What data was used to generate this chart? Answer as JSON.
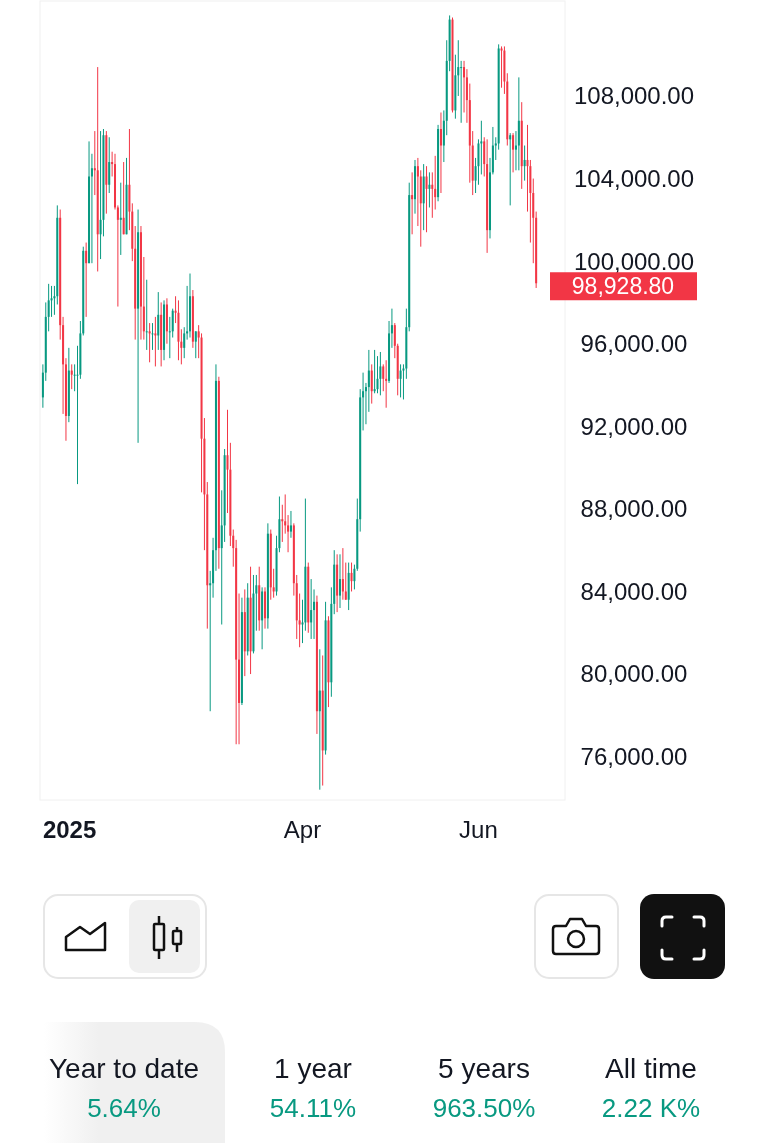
{
  "chart_data": {
    "type": "candlestick",
    "colors": [
      "#089981",
      "#089981",
      "#089981",
      "#089981",
      "#089981",
      "#089981",
      "#f23645",
      "#f23645",
      "#f23645",
      "#089981",
      "#f23645",
      "#089981",
      "#089981",
      "#089981",
      "#089981",
      "#f23645",
      "#089981",
      "#089981",
      "#f23645",
      "#f23645",
      "#089981",
      "#089981",
      "#f23645",
      "#089981",
      "#f23645",
      "#f23645",
      "#f23645",
      "#089981",
      "#f23645",
      "#089981",
      "#f23645",
      "#f23645",
      "#f23645",
      "#089981",
      "#f23645",
      "#f23645",
      "#089981",
      "#f23645",
      "#089981",
      "#f23645",
      "#089981",
      "#f23645",
      "#089981",
      "#f23645",
      "#089981",
      "#089981",
      "#f23645",
      "#f23645",
      "#f23645",
      "#089981",
      "#089981",
      "#089981",
      "#f23645",
      "#089981",
      "#f23645",
      "#f23645",
      "#f23645",
      "#f23645",
      "#089981",
      "#089981",
      "#089981",
      "#f23645",
      "#089981",
      "#089981",
      "#f23645",
      "#f23645",
      "#f23645",
      "#f23645",
      "#f23645",
      "#089981",
      "#f23645",
      "#089981",
      "#f23645",
      "#089981",
      "#089981",
      "#f23645",
      "#089981",
      "#f23645",
      "#089981",
      "#f23645",
      "#f23645",
      "#089981",
      "#089981",
      "#f23645",
      "#f23645",
      "#f23645",
      "#089981",
      "#f23645",
      "#f23645",
      "#f23645",
      "#089981",
      "#089981",
      "#f23645",
      "#089981",
      "#089981",
      "#f23645",
      "#089981",
      "#f23645",
      "#089981",
      "#f23645",
      "#089981",
      "#089981",
      "#f23645",
      "#089981",
      "#f23645",
      "#f23645",
      "#089981",
      "#f23645",
      "#089981",
      "#089981",
      "#089981",
      "#089981",
      "#089981",
      "#089981",
      "#f23645",
      "#089981",
      "#089981",
      "#089981",
      "#f23645",
      "#f23645",
      "#089981",
      "#089981",
      "#f23645",
      "#f23645",
      "#089981",
      "#089981",
      "#089981",
      "#089981",
      "#f23645",
      "#089981",
      "#f23645",
      "#f23645",
      "#089981",
      "#f23645",
      "#089981",
      "#f23645",
      "#f23645",
      "#089981",
      "#f23645",
      "#089981",
      "#089981",
      "#089981",
      "#f23645",
      "#089981",
      "#089981",
      "#089981",
      "#f23645",
      "#f23645",
      "#f23645",
      "#f23645",
      "#089981",
      "#089981",
      "#089981",
      "#f23645",
      "#f23645",
      "#089981",
      "#089981",
      "#089981",
      "#089981",
      "#f23645",
      "#f23645",
      "#f23645",
      "#089981",
      "#f23645",
      "#089981",
      "#089981",
      "#f23645",
      "#089981",
      "#f23645",
      "#f23645",
      "#f23645",
      "#f23645"
    ],
    "xlim": [
      "2024-12-31",
      "2025-07-01"
    ],
    "ylim": [
      73900,
      112600
    ],
    "xticks": [
      {
        "value": "2025-01-01",
        "label": "2025"
      },
      {
        "value": "2025-04-01",
        "label": "Apr"
      },
      {
        "value": "2025-06-01",
        "label": "Jun"
      }
    ],
    "yticks": [
      {
        "value": 76000,
        "label": "76,000.00"
      },
      {
        "value": 80000,
        "label": "80,000.00"
      },
      {
        "value": 84000,
        "label": "84,000.00"
      },
      {
        "value": 88000,
        "label": "88,000.00"
      },
      {
        "value": 92000,
        "label": "92,000.00"
      },
      {
        "value": 96000,
        "label": "96,000.00"
      },
      {
        "value": 100000,
        "label": "100,000.00"
      },
      {
        "value": 104000,
        "label": "104,000.00"
      },
      {
        "value": 108000,
        "label": "108,000.00"
      }
    ],
    "grid": false,
    "annotations": [
      "98,928.80",
      "Year to date",
      "5.64%",
      "1 year",
      "54.11%",
      "5 years",
      "963.50%",
      "All time",
      "2.22 K%"
    ],
    "x": [
      "2025-01-01",
      "2025-01-02",
      "2025-01-03",
      "2025-01-04",
      "2025-01-05",
      "2025-01-06",
      "2025-01-07",
      "2025-01-08",
      "2025-01-09",
      "2025-01-10",
      "2025-01-11",
      "2025-01-12",
      "2025-01-13",
      "2025-01-14",
      "2025-01-15",
      "2025-01-16",
      "2025-01-17",
      "2025-01-18",
      "2025-01-19",
      "2025-01-20",
      "2025-01-21",
      "2025-01-22",
      "2025-01-23",
      "2025-01-24",
      "2025-01-25",
      "2025-01-26",
      "2025-01-27",
      "2025-01-28",
      "2025-01-29",
      "2025-01-30",
      "2025-01-31",
      "2025-02-01",
      "2025-02-02",
      "2025-02-03",
      "2025-02-04",
      "2025-02-05",
      "2025-02-06",
      "2025-02-07",
      "2025-02-08",
      "2025-02-09",
      "2025-02-10",
      "2025-02-11",
      "2025-02-12",
      "2025-02-13",
      "2025-02-14",
      "2025-02-15",
      "2025-02-16",
      "2025-02-17",
      "2025-02-18",
      "2025-02-19",
      "2025-02-20",
      "2025-02-21",
      "2025-02-22",
      "2025-02-23",
      "2025-02-24",
      "2025-02-25",
      "2025-02-26",
      "2025-02-27",
      "2025-02-28",
      "2025-03-01",
      "2025-03-02",
      "2025-03-03",
      "2025-03-04",
      "2025-03-05",
      "2025-03-06",
      "2025-03-07",
      "2025-03-08",
      "2025-03-09",
      "2025-03-10",
      "2025-03-11",
      "2025-03-12",
      "2025-03-13",
      "2025-03-14",
      "2025-03-15",
      "2025-03-16",
      "2025-03-17",
      "2025-03-18",
      "2025-03-19",
      "2025-03-20",
      "2025-03-21",
      "2025-03-22",
      "2025-03-23",
      "2025-03-24",
      "2025-03-25",
      "2025-03-26",
      "2025-03-27",
      "2025-03-28",
      "2025-03-29",
      "2025-03-30",
      "2025-03-31",
      "2025-04-01",
      "2025-04-02",
      "2025-04-03",
      "2025-04-04",
      "2025-04-05",
      "2025-04-06",
      "2025-04-07",
      "2025-04-08",
      "2025-04-09",
      "2025-04-10",
      "2025-04-11",
      "2025-04-12",
      "2025-04-13",
      "2025-04-14",
      "2025-04-15",
      "2025-04-16",
      "2025-04-17",
      "2025-04-18",
      "2025-04-19",
      "2025-04-20",
      "2025-04-21",
      "2025-04-22",
      "2025-04-23",
      "2025-04-24",
      "2025-04-25",
      "2025-04-26",
      "2025-04-27",
      "2025-04-28",
      "2025-04-29",
      "2025-04-30",
      "2025-05-01",
      "2025-05-02",
      "2025-05-03",
      "2025-05-04",
      "2025-05-05",
      "2025-05-06",
      "2025-05-07",
      "2025-05-08",
      "2025-05-09",
      "2025-05-10",
      "2025-05-11",
      "2025-05-12",
      "2025-05-13",
      "2025-05-14",
      "2025-05-15",
      "2025-05-16",
      "2025-05-17",
      "2025-05-18",
      "2025-05-19",
      "2025-05-20",
      "2025-05-21",
      "2025-05-22",
      "2025-05-23",
      "2025-05-24",
      "2025-05-25",
      "2025-05-26",
      "2025-05-27",
      "2025-05-28",
      "2025-05-29",
      "2025-05-30",
      "2025-05-31",
      "2025-06-01",
      "2025-06-02",
      "2025-06-03",
      "2025-06-04",
      "2025-06-05",
      "2025-06-06",
      "2025-06-07",
      "2025-06-08",
      "2025-06-09",
      "2025-06-10",
      "2025-06-11",
      "2025-06-12",
      "2025-06-13",
      "2025-06-14",
      "2025-06-15",
      "2025-06-16",
      "2025-06-17",
      "2025-06-18",
      "2025-06-19",
      "2025-06-20",
      "2025-06-21"
    ],
    "ohlc": [
      [
        93400,
        95000,
        92900,
        94600
      ],
      [
        94600,
        98000,
        94200,
        97300
      ],
      [
        97300,
        98900,
        96600,
        98100
      ],
      [
        98100,
        98800,
        97300,
        98200
      ],
      [
        98200,
        98800,
        97400,
        98300
      ],
      [
        98300,
        102700,
        97900,
        102100
      ],
      [
        102100,
        102500,
        96200,
        96900
      ],
      [
        96900,
        97300,
        92600,
        95000
      ],
      [
        95000,
        95300,
        91300,
        92500
      ],
      [
        92500,
        95800,
        92200,
        94700
      ],
      [
        94700,
        95000,
        93800,
        94500
      ],
      [
        94500,
        95000,
        93700,
        94500
      ],
      [
        94500,
        95900,
        89200,
        94500
      ],
      [
        94500,
        97100,
        94300,
        96500
      ],
      [
        96500,
        100700,
        96400,
        100500
      ],
      [
        100500,
        100900,
        97300,
        99900
      ],
      [
        99900,
        105800,
        99900,
        104100
      ],
      [
        104100,
        105200,
        99900,
        104500
      ],
      [
        104500,
        106300,
        103200,
        104400
      ],
      [
        104400,
        109400,
        99500,
        101300
      ],
      [
        101300,
        106300,
        100100,
        102000
      ],
      [
        102000,
        106400,
        101200,
        106100
      ],
      [
        106100,
        106300,
        102300,
        103700
      ],
      [
        103700,
        106000,
        103300,
        104800
      ],
      [
        104800,
        105300,
        104100,
        104700
      ],
      [
        104700,
        105200,
        102500,
        102600
      ],
      [
        102600,
        102700,
        97800,
        102000
      ],
      [
        102000,
        103800,
        100300,
        102100
      ],
      [
        102100,
        104800,
        101300,
        101300
      ],
      [
        101300,
        105000,
        101300,
        103700
      ],
      [
        103700,
        106400,
        101500,
        102400
      ],
      [
        102400,
        102800,
        100000,
        100600
      ],
      [
        100600,
        101700,
        96200,
        97700
      ],
      [
        97700,
        102500,
        91200,
        101400
      ],
      [
        101400,
        101700,
        96200,
        97800
      ],
      [
        97800,
        100200,
        96200,
        96600
      ],
      [
        96600,
        99100,
        95700,
        96600
      ],
      [
        96600,
        97000,
        95100,
        96500
      ],
      [
        96500,
        97000,
        95700,
        96500
      ],
      [
        96500,
        97300,
        94900,
        96400
      ],
      [
        96400,
        98500,
        95700,
        97400
      ],
      [
        97400,
        98000,
        94900,
        95700
      ],
      [
        95700,
        98100,
        95200,
        97900
      ],
      [
        97900,
        98200,
        96000,
        96600
      ],
      [
        96600,
        97300,
        95300,
        96600
      ],
      [
        96600,
        97700,
        96300,
        97600
      ],
      [
        97600,
        98300,
        97000,
        97500
      ],
      [
        97500,
        98100,
        95200,
        96100
      ],
      [
        96100,
        96700,
        95000,
        95800
      ],
      [
        95800,
        96800,
        95300,
        96500
      ],
      [
        96500,
        98800,
        96200,
        96600
      ],
      [
        96600,
        99400,
        96300,
        98300
      ],
      [
        98300,
        98600,
        95800,
        96100
      ],
      [
        96100,
        96600,
        95300,
        96600
      ],
      [
        96600,
        96900,
        95300,
        96300
      ],
      [
        96300,
        96500,
        88800,
        91400
      ],
      [
        91400,
        92400,
        86000,
        88700
      ],
      [
        88700,
        89300,
        82200,
        84300
      ],
      [
        84300,
        85000,
        78200,
        84400
      ],
      [
        84400,
        86600,
        83700,
        86000
      ],
      [
        86000,
        95000,
        85000,
        94200
      ],
      [
        94200,
        94400,
        85100,
        86100
      ],
      [
        86100,
        88900,
        82400,
        87200
      ],
      [
        87200,
        90900,
        86400,
        90600
      ],
      [
        90600,
        92800,
        87800,
        89900
      ],
      [
        89900,
        91200,
        86200,
        86700
      ],
      [
        86700,
        87000,
        85200,
        86100
      ],
      [
        86100,
        86500,
        76600,
        80700
      ],
      [
        80700,
        83900,
        76600,
        78600
      ],
      [
        78600,
        83700,
        78500,
        83000
      ],
      [
        83000,
        84100,
        79900,
        81100
      ],
      [
        81100,
        84400,
        80900,
        83700
      ],
      [
        83700,
        85200,
        80000,
        81100
      ],
      [
        81100,
        84800,
        81000,
        83900
      ],
      [
        83900,
        84800,
        82100,
        84300
      ],
      [
        84300,
        85200,
        82100,
        82600
      ],
      [
        82600,
        84200,
        81200,
        84000
      ],
      [
        84000,
        84200,
        82200,
        82700
      ],
      [
        82700,
        87300,
        82200,
        86800
      ],
      [
        86800,
        87000,
        83600,
        84200
      ],
      [
        84200,
        85100,
        83700,
        84000
      ],
      [
        84000,
        86700,
        83800,
        86100
      ],
      [
        86100,
        88600,
        85900,
        87500
      ],
      [
        87500,
        88200,
        86400,
        87400
      ],
      [
        87400,
        88700,
        86800,
        87200
      ],
      [
        87200,
        87700,
        85900,
        86900
      ],
      [
        86900,
        87900,
        86600,
        87200
      ],
      [
        87200,
        87300,
        83800,
        84400
      ],
      [
        84400,
        84800,
        81700,
        82600
      ],
      [
        82600,
        83900,
        81300,
        82400
      ],
      [
        82400,
        83600,
        81500,
        82500
      ],
      [
        82500,
        88500,
        82100,
        85200
      ],
      [
        85200,
        85400,
        82000,
        82500
      ],
      [
        82500,
        84600,
        81700,
        83100
      ],
      [
        83100,
        84100,
        81700,
        83500
      ],
      [
        83500,
        83800,
        77100,
        78200
      ],
      [
        78200,
        81200,
        74400,
        79200
      ],
      [
        79200,
        80900,
        74600,
        76300
      ],
      [
        76300,
        83500,
        76100,
        82600
      ],
      [
        82600,
        82800,
        78400,
        79600
      ],
      [
        79600,
        84200,
        78900,
        83400
      ],
      [
        83400,
        86000,
        82900,
        85300
      ],
      [
        85300,
        85800,
        83000,
        83800
      ],
      [
        83800,
        85800,
        83200,
        84600
      ],
      [
        84600,
        86100,
        83600,
        84000
      ],
      [
        84000,
        85400,
        83600,
        83600
      ],
      [
        83600,
        85400,
        83100,
        84900
      ],
      [
        84900,
        85400,
        84000,
        84500
      ],
      [
        84500,
        85300,
        84100,
        85100
      ],
      [
        85100,
        88500,
        85000,
        87500
      ],
      [
        87500,
        93800,
        86900,
        93400
      ],
      [
        93400,
        94600,
        91800,
        93700
      ],
      [
        93700,
        94100,
        92100,
        93900
      ],
      [
        93900,
        95700,
        92700,
        94700
      ],
      [
        94700,
        95000,
        93100,
        93700
      ],
      [
        93700,
        95700,
        93600,
        93800
      ],
      [
        93800,
        95400,
        93600,
        94300
      ],
      [
        94300,
        95600,
        93500,
        94900
      ],
      [
        94900,
        95000,
        93700,
        94300
      ],
      [
        94300,
        95200,
        92900,
        94200
      ],
      [
        94200,
        97100,
        94100,
        96500
      ],
      [
        96500,
        97700,
        95800,
        96900
      ],
      [
        96900,
        97000,
        95300,
        95900
      ],
      [
        95900,
        96000,
        93500,
        94300
      ],
      [
        94300,
        95000,
        93400,
        94700
      ],
      [
        94700,
        95000,
        93300,
        94800
      ],
      [
        94800,
        97700,
        94300,
        96800
      ],
      [
        96800,
        103800,
        96600,
        103200
      ],
      [
        103200,
        104300,
        101300,
        103000
      ],
      [
        103000,
        104900,
        102300,
        104600
      ],
      [
        104600,
        105000,
        101700,
        104100
      ],
      [
        104100,
        104400,
        100700,
        102800
      ],
      [
        102800,
        104700,
        101500,
        104100
      ],
      [
        104100,
        104600,
        101400,
        103500
      ],
      [
        103500,
        104300,
        102600,
        103700
      ],
      [
        103700,
        104300,
        102100,
        103500
      ],
      [
        103500,
        105100,
        102500,
        103100
      ],
      [
        103100,
        106600,
        102900,
        106400
      ],
      [
        106400,
        107200,
        103300,
        105600
      ],
      [
        105600,
        107300,
        104800,
        106800
      ],
      [
        106800,
        110700,
        106100,
        109700
      ],
      [
        109700,
        111900,
        109200,
        111700
      ],
      [
        111700,
        111800,
        107200,
        107300
      ],
      [
        107300,
        110000,
        106900,
        109000
      ],
      [
        109000,
        110700,
        108000,
        109400
      ],
      [
        109400,
        109700,
        106700,
        109400
      ],
      [
        109400,
        109700,
        107200,
        108900
      ],
      [
        108900,
        109300,
        106700,
        107800
      ],
      [
        107800,
        108600,
        103800,
        105600
      ],
      [
        105600,
        106300,
        103200,
        103900
      ],
      [
        103900,
        105000,
        103300,
        104600
      ],
      [
        104600,
        105900,
        103700,
        105700
      ],
      [
        105700,
        106800,
        104200,
        105800
      ],
      [
        105800,
        106000,
        104100,
        104700
      ],
      [
        104700,
        105900,
        100400,
        101500
      ],
      [
        101500,
        105000,
        101100,
        104300
      ],
      [
        104300,
        106500,
        104200,
        105600
      ],
      [
        105600,
        106000,
        104900,
        105700
      ],
      [
        105700,
        110500,
        105400,
        110300
      ],
      [
        110300,
        110400,
        108400,
        110200
      ],
      [
        110200,
        110400,
        108100,
        108700
      ],
      [
        108700,
        109100,
        105600,
        105900
      ],
      [
        105900,
        106200,
        102700,
        106100
      ],
      [
        106100,
        106200,
        104300,
        105400
      ],
      [
        105400,
        106300,
        104400,
        105600
      ],
      [
        105600,
        108900,
        104400,
        106800
      ],
      [
        106800,
        107700,
        103500,
        104600
      ],
      [
        104600,
        105600,
        103900,
        104900
      ],
      [
        104900,
        106600,
        102400,
        104600
      ],
      [
        104600,
        104900,
        100900,
        103300
      ],
      [
        103300,
        104000,
        99900,
        102100
      ],
      [
        102100,
        102400,
        98700,
        98928.8
      ]
    ]
  }
}
